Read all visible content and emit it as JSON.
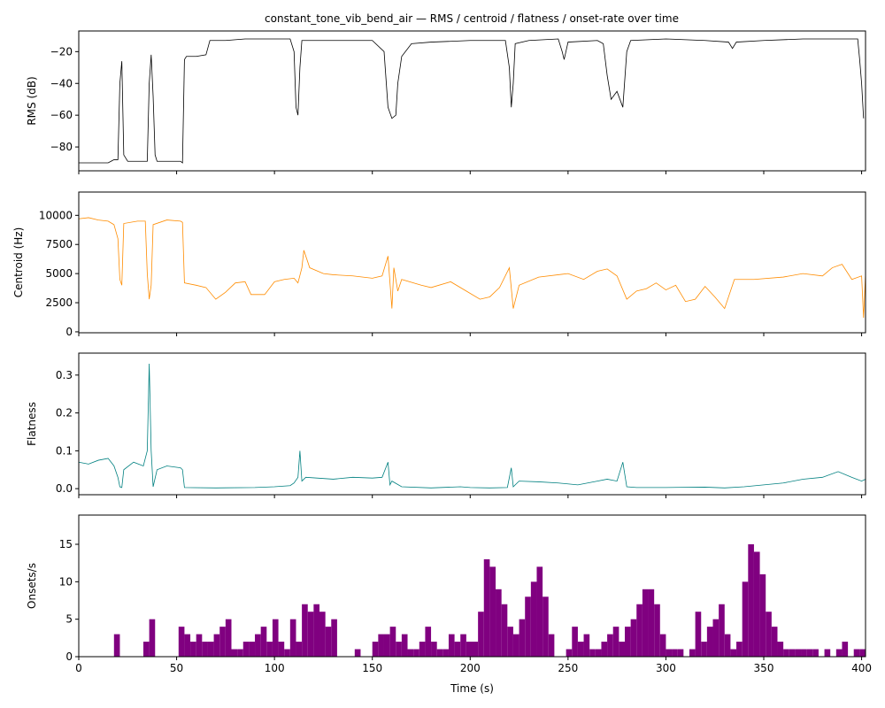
{
  "chart_data": [
    {
      "type": "line",
      "title": "constant_tone_vib_bend_air — RMS / centroid / flatness / onset-rate over time",
      "ylabel": "RMS (dB)",
      "color": "#000000",
      "x": [
        0,
        15,
        18,
        20,
        21,
        22,
        23,
        25,
        35,
        36,
        37,
        38,
        39,
        40,
        52,
        53,
        54,
        55,
        60,
        65,
        67,
        75,
        85,
        100,
        108,
        110,
        111,
        112,
        113,
        114,
        130,
        140,
        150,
        156,
        158,
        160,
        162,
        163,
        165,
        170,
        180,
        200,
        215,
        218,
        220,
        221,
        222,
        223,
        230,
        245,
        247,
        248,
        250,
        265,
        268,
        270,
        272,
        275,
        278,
        280,
        282,
        300,
        320,
        332,
        334,
        336,
        350,
        370,
        385,
        398,
        399,
        400,
        401
      ],
      "values": [
        -90,
        -90,
        -88,
        -88,
        -40,
        -26,
        -85,
        -89,
        -89,
        -40,
        -22,
        -48,
        -85,
        -89,
        -89,
        -90,
        -25,
        -23,
        -23,
        -22,
        -13,
        -13,
        -12,
        -12,
        -12,
        -20,
        -55,
        -60,
        -30,
        -13,
        -13,
        -13,
        -13,
        -20,
        -55,
        -62,
        -60,
        -40,
        -23,
        -15,
        -14,
        -13,
        -13,
        -13,
        -30,
        -55,
        -40,
        -15,
        -13,
        -12,
        -20,
        -25,
        -14,
        -13,
        -15,
        -35,
        -50,
        -45,
        -55,
        -20,
        -13,
        -12,
        -13,
        -14,
        -18,
        -14,
        -13,
        -12,
        -12,
        -12,
        -25,
        -40,
        -62
      ],
      "xlim": [
        0,
        402
      ],
      "ylim": [
        -95,
        -7
      ],
      "yticks": [
        {
          "value": -80,
          "label": "−80"
        },
        {
          "value": -60,
          "label": "−60"
        },
        {
          "value": -40,
          "label": "−40"
        },
        {
          "value": -20,
          "label": "−20"
        }
      ]
    },
    {
      "type": "line",
      "ylabel": "Centroid (Hz)",
      "color": "#ff8c00",
      "x": [
        0,
        5,
        10,
        15,
        18,
        20,
        21,
        22,
        23,
        30,
        34,
        35,
        36,
        37,
        38,
        45,
        52,
        53,
        54,
        60,
        65,
        70,
        75,
        80,
        85,
        88,
        95,
        100,
        105,
        110,
        112,
        114,
        115,
        118,
        125,
        130,
        140,
        150,
        155,
        158,
        160,
        161,
        163,
        165,
        175,
        180,
        190,
        198,
        205,
        210,
        215,
        220,
        222,
        225,
        235,
        250,
        258,
        265,
        270,
        275,
        280,
        285,
        290,
        295,
        300,
        305,
        310,
        315,
        320,
        325,
        330,
        335,
        345,
        360,
        370,
        380,
        385,
        390,
        395,
        400,
        401,
        402
      ],
      "values": [
        9700,
        9800,
        9600,
        9500,
        9200,
        8000,
        4500,
        4000,
        9300,
        9500,
        9500,
        5000,
        2800,
        4000,
        9200,
        9600,
        9500,
        9400,
        4200,
        4000,
        3800,
        2800,
        3400,
        4200,
        4300,
        3200,
        3200,
        4300,
        4500,
        4600,
        4200,
        5500,
        7000,
        5500,
        5000,
        4900,
        4800,
        4600,
        4800,
        6500,
        2000,
        5500,
        3500,
        4500,
        4000,
        3800,
        4300,
        3500,
        2800,
        3000,
        3800,
        5500,
        2000,
        4000,
        4700,
        5000,
        4500,
        5200,
        5400,
        4800,
        2800,
        3500,
        3700,
        4200,
        3600,
        4000,
        2600,
        2800,
        3900,
        3000,
        2000,
        4500,
        4500,
        4700,
        5000,
        4800,
        5500,
        5800,
        4500,
        4800,
        1200,
        5000
      ],
      "xlim": [
        0,
        402
      ],
      "ylim": [
        -80,
        12000
      ],
      "yticks": [
        0,
        2500,
        5000,
        7500,
        10000
      ]
    },
    {
      "type": "line",
      "ylabel": "Flatness",
      "color": "#008080",
      "x": [
        0,
        5,
        10,
        15,
        18,
        20,
        21,
        22,
        23,
        28,
        33,
        35,
        36,
        37,
        38,
        40,
        45,
        52,
        53,
        54,
        70,
        90,
        100,
        108,
        110,
        112,
        113,
        114,
        116,
        130,
        140,
        150,
        155,
        158,
        159,
        160,
        165,
        180,
        195,
        200,
        210,
        219,
        221,
        222,
        225,
        235,
        245,
        255,
        265,
        270,
        275,
        278,
        280,
        285,
        300,
        320,
        330,
        340,
        350,
        360,
        370,
        380,
        388,
        395,
        400,
        402
      ],
      "values": [
        0.07,
        0.065,
        0.075,
        0.08,
        0.06,
        0.03,
        0.005,
        0.003,
        0.05,
        0.07,
        0.06,
        0.1,
        0.33,
        0.1,
        0.005,
        0.05,
        0.06,
        0.055,
        0.05,
        0.003,
        0.002,
        0.003,
        0.005,
        0.008,
        0.015,
        0.03,
        0.1,
        0.02,
        0.03,
        0.025,
        0.03,
        0.028,
        0.03,
        0.07,
        0.01,
        0.02,
        0.005,
        0.002,
        0.005,
        0.003,
        0.002,
        0.003,
        0.055,
        0.005,
        0.02,
        0.018,
        0.015,
        0.01,
        0.02,
        0.025,
        0.02,
        0.07,
        0.005,
        0.003,
        0.003,
        0.004,
        0.002,
        0.005,
        0.01,
        0.015,
        0.025,
        0.03,
        0.045,
        0.03,
        0.02,
        0.025
      ],
      "xlim": [
        0,
        402
      ],
      "ylim": [
        -0.016,
        0.358
      ],
      "yticks": [
        {
          "value": 0,
          "label": "0.0"
        },
        0.1,
        0.2,
        0.3
      ]
    },
    {
      "type": "histogram",
      "ylabel": "Onsets/s",
      "xlabel": "Time (s)",
      "color": "#800080",
      "bins": [
        0,
        3,
        6,
        9,
        12,
        15,
        18,
        21,
        24,
        27,
        30,
        33,
        36,
        39,
        42,
        45,
        48,
        51,
        54,
        57,
        60,
        63,
        66,
        69,
        72,
        75,
        78,
        81,
        84,
        87,
        90,
        93,
        96,
        99,
        102,
        105,
        108,
        111,
        114,
        117,
        120,
        123,
        126,
        129,
        132,
        135,
        138,
        141,
        144,
        147,
        150,
        153,
        156,
        159,
        162,
        165,
        168,
        171,
        174,
        177,
        180,
        183,
        186,
        189,
        192,
        195,
        198,
        201,
        204,
        207,
        210,
        213,
        216,
        219,
        222,
        225,
        228,
        231,
        234,
        237,
        240,
        243,
        246,
        249,
        252,
        255,
        258,
        261,
        264,
        267,
        270,
        273,
        276,
        279,
        282,
        285,
        288,
        291,
        294,
        297,
        300,
        303,
        306,
        309,
        312,
        315,
        318,
        321,
        324,
        327,
        330,
        333,
        336,
        339,
        342,
        345,
        348,
        351,
        354,
        357,
        360,
        363,
        366,
        369,
        372,
        375,
        378,
        381,
        384,
        387,
        390,
        393,
        396,
        399,
        402
      ],
      "values": [
        0,
        0,
        0,
        0,
        0,
        0,
        3,
        0,
        0,
        0,
        0,
        2,
        5,
        0,
        0,
        0,
        0,
        4,
        3,
        2,
        3,
        2,
        2,
        3,
        4,
        5,
        1,
        1,
        2,
        2,
        3,
        4,
        2,
        5,
        2,
        1,
        5,
        2,
        7,
        6,
        7,
        6,
        4,
        5,
        0,
        0,
        0,
        1,
        0,
        0,
        2,
        3,
        3,
        4,
        2,
        3,
        1,
        1,
        2,
        4,
        2,
        1,
        1,
        3,
        2,
        3,
        2,
        2,
        6,
        13,
        12,
        9,
        7,
        4,
        3,
        5,
        8,
        10,
        12,
        8,
        3,
        0,
        0,
        1,
        4,
        2,
        3,
        1,
        1,
        2,
        3,
        4,
        2,
        4,
        5,
        7,
        9,
        9,
        7,
        3,
        1,
        1,
        1,
        0,
        1,
        6,
        2,
        4,
        5,
        7,
        3,
        1,
        2,
        10,
        15,
        14,
        11,
        6,
        4,
        2,
        1,
        1,
        1,
        1,
        1,
        1,
        0,
        1,
        0,
        1,
        2,
        0,
        1,
        1
      ],
      "xlim": [
        0,
        402
      ],
      "ylim": [
        0,
        18.9
      ],
      "yticks": [
        0,
        5,
        10,
        15
      ],
      "xticks": [
        0,
        50,
        100,
        150,
        200,
        250,
        300,
        350,
        400
      ]
    }
  ]
}
